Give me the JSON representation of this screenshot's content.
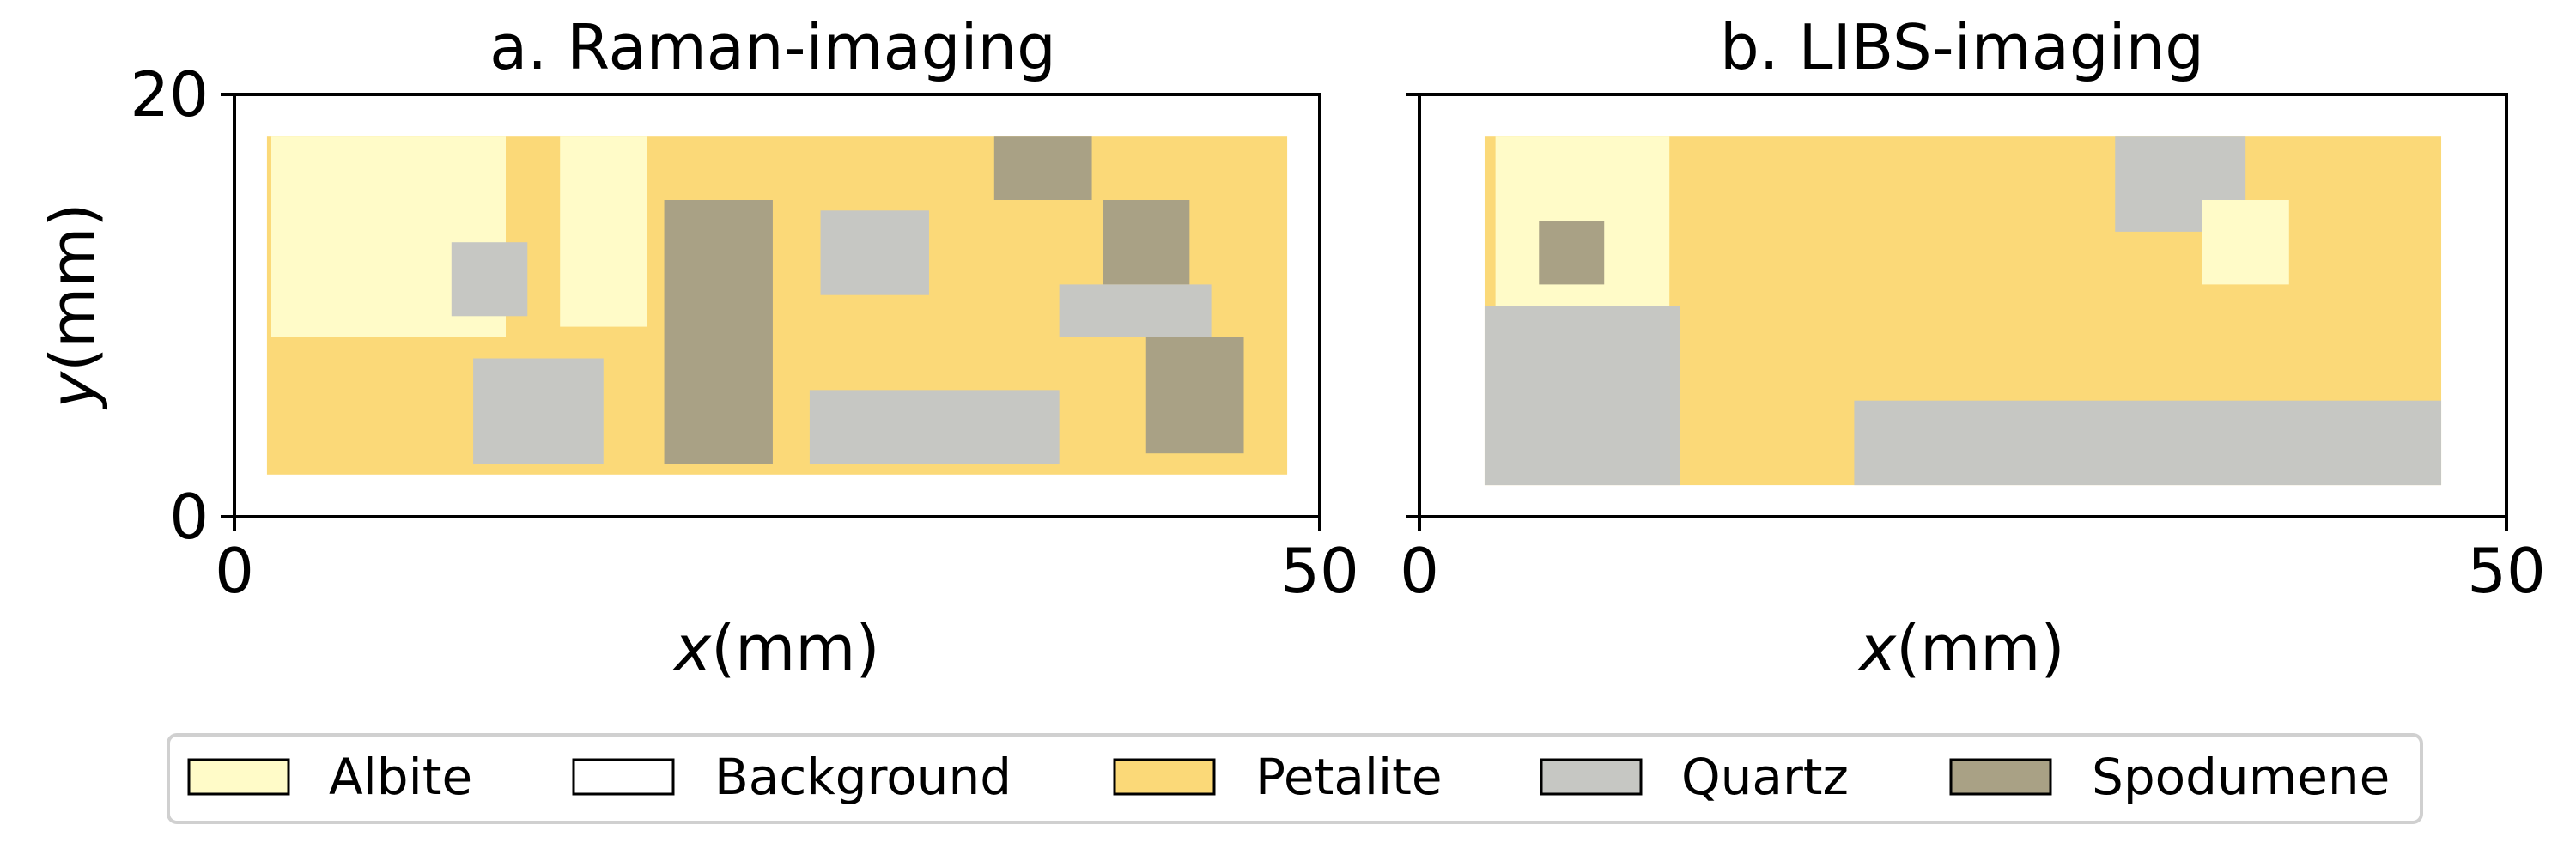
{
  "chart_data": [
    {
      "type": "heatmap",
      "title": "a. Raman-imaging",
      "xlabel_var": "x",
      "xlabel_unit": "(mm)",
      "ylabel_var": "y",
      "ylabel_unit": "(mm)",
      "xlim": [
        0,
        50
      ],
      "ylim": [
        0,
        20
      ],
      "xticks": [
        "0",
        "50"
      ],
      "yticks": [
        "0",
        "20"
      ],
      "categories": [
        "Albite",
        "Background",
        "Petalite",
        "Quartz",
        "Spodumene"
      ],
      "regions": [
        {
          "phase": "Petalite",
          "x": [
            1.5,
            48.5
          ],
          "y": [
            2.0,
            18.0
          ]
        },
        {
          "phase": "Albite",
          "x": [
            1.7,
            12.5
          ],
          "y": [
            8.5,
            18.0
          ]
        },
        {
          "phase": "Albite",
          "x": [
            15.0,
            19.0
          ],
          "y": [
            9.0,
            18.0
          ]
        },
        {
          "phase": "Quartz",
          "x": [
            10.0,
            13.5
          ],
          "y": [
            9.5,
            13.0
          ]
        },
        {
          "phase": "Quartz",
          "x": [
            11.0,
            17.0
          ],
          "y": [
            2.5,
            7.5
          ]
        },
        {
          "phase": "Spodumene",
          "x": [
            19.8,
            24.8
          ],
          "y": [
            2.5,
            15.0
          ]
        },
        {
          "phase": "Quartz",
          "x": [
            26.5,
            38.0
          ],
          "y": [
            2.5,
            6.0
          ]
        },
        {
          "phase": "Quartz",
          "x": [
            27.0,
            32.0
          ],
          "y": [
            10.5,
            14.5
          ]
        },
        {
          "phase": "Spodumene",
          "x": [
            35.0,
            39.5
          ],
          "y": [
            15.0,
            18.0
          ]
        },
        {
          "phase": "Spodumene",
          "x": [
            42.0,
            46.5
          ],
          "y": [
            3.0,
            8.5
          ]
        },
        {
          "phase": "Spodumene",
          "x": [
            40.0,
            44.0
          ],
          "y": [
            11.0,
            15.0
          ]
        },
        {
          "phase": "Quartz",
          "x": [
            38.0,
            45.0
          ],
          "y": [
            8.5,
            11.0
          ]
        }
      ]
    },
    {
      "type": "heatmap",
      "title": "b. LIBS-imaging",
      "xlabel_var": "x",
      "xlabel_unit": "(mm)",
      "xlim": [
        0,
        50
      ],
      "ylim": [
        0,
        20
      ],
      "xticks": [
        "0",
        "50"
      ],
      "categories": [
        "Albite",
        "Background",
        "Petalite",
        "Quartz",
        "Spodumene"
      ],
      "regions": [
        {
          "phase": "Petalite",
          "x": [
            3.0,
            47.0
          ],
          "y": [
            1.5,
            18.0
          ]
        },
        {
          "phase": "Albite",
          "x": [
            3.5,
            11.5
          ],
          "y": [
            10.0,
            18.0
          ]
        },
        {
          "phase": "Quartz",
          "x": [
            3.0,
            12.0
          ],
          "y": [
            1.5,
            10.0
          ]
        },
        {
          "phase": "Spodumene",
          "x": [
            5.5,
            8.5
          ],
          "y": [
            11.0,
            14.0
          ]
        },
        {
          "phase": "Quartz",
          "x": [
            20.0,
            47.0
          ],
          "y": [
            1.5,
            5.5
          ]
        },
        {
          "phase": "Quartz",
          "x": [
            32.0,
            38.0
          ],
          "y": [
            13.5,
            18.0
          ]
        },
        {
          "phase": "Albite",
          "x": [
            36.0,
            40.0
          ],
          "y": [
            11.0,
            15.0
          ]
        }
      ]
    }
  ],
  "legend": {
    "items": [
      {
        "label": "Albite",
        "color": "#fffbc8"
      },
      {
        "label": "Background",
        "color": "#ffffff"
      },
      {
        "label": "Petalite",
        "color": "#fbd978"
      },
      {
        "label": "Quartz",
        "color": "#c6c7c3"
      },
      {
        "label": "Spodumene",
        "color": "#a9a185"
      }
    ]
  }
}
